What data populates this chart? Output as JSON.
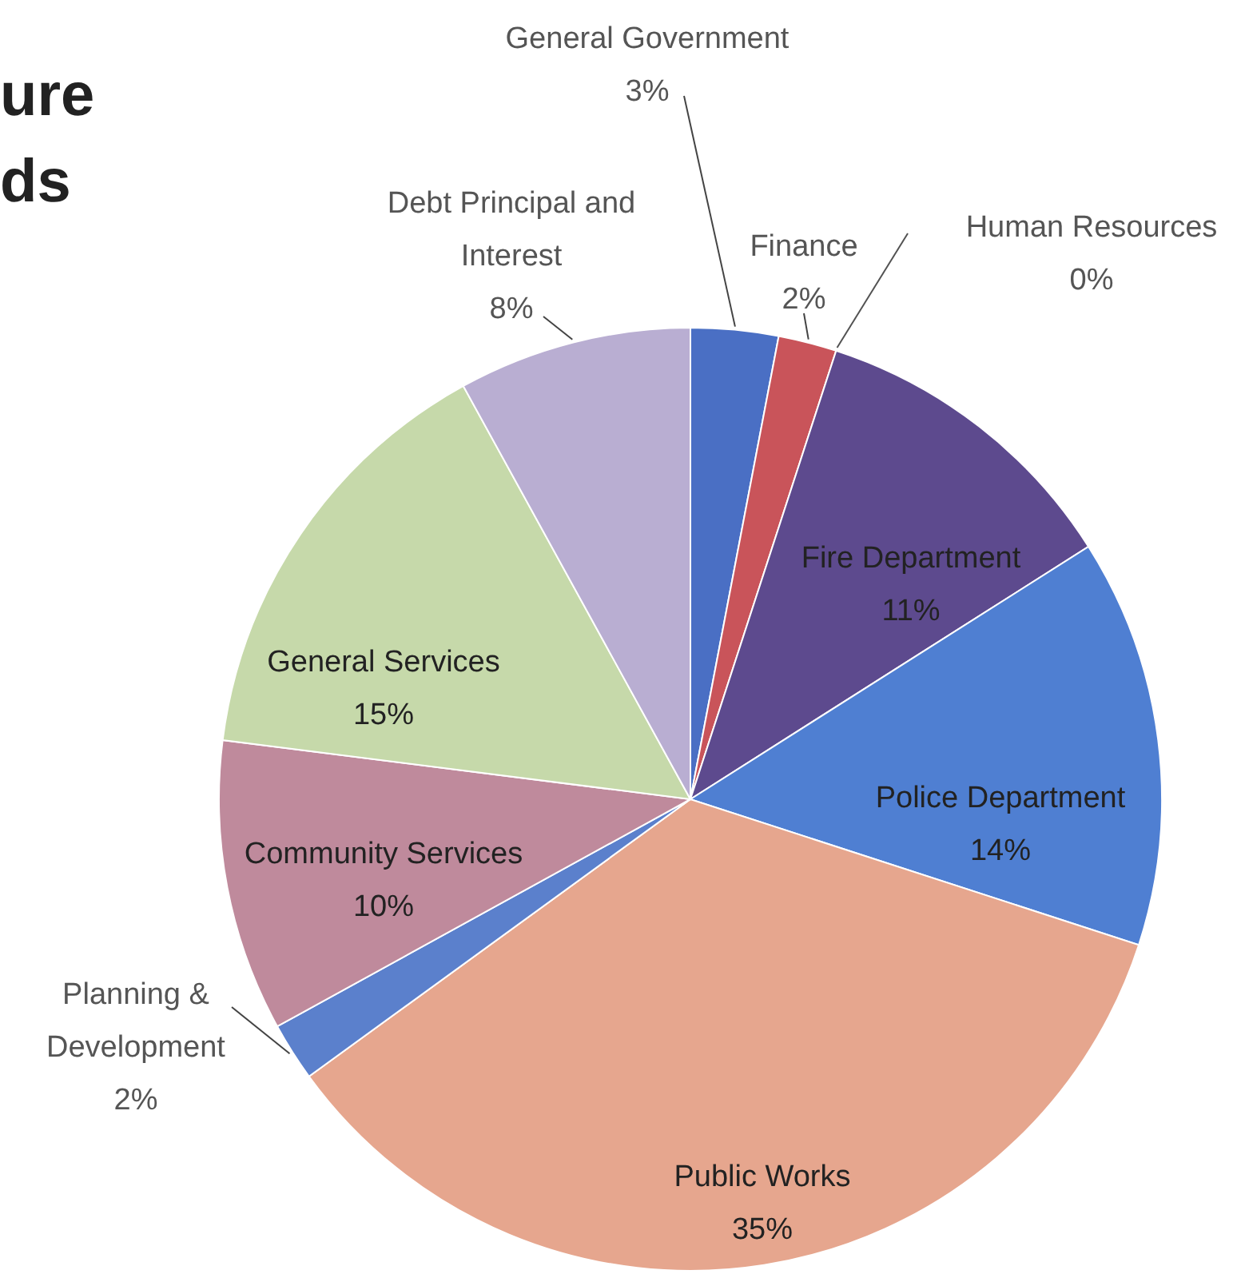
{
  "chart_data": {
    "type": "pie",
    "title": "ure",
    "subtitle": "ds",
    "categories": [
      "General Government",
      "Finance",
      "Human Resources",
      "Fire Department",
      "Police Department",
      "Public Works",
      "Planning & Development",
      "Community Services",
      "General Services",
      "Debt Principal and Interest"
    ],
    "values": [
      3,
      2,
      0,
      11,
      14,
      35,
      2,
      10,
      15,
      8
    ],
    "value_labels": [
      "3%",
      "2%",
      "0%",
      "11%",
      "14%",
      "35%",
      "2%",
      "10%",
      "15%",
      "8%"
    ],
    "colors": [
      "#4a6fc4",
      "#c9545a",
      "#c8c8c8",
      "#5d4a8e",
      "#4f7fd2",
      "#e6a68e",
      "#5b80cc",
      "#bf8a9c",
      "#c6d9aa",
      "#b9aed2"
    ]
  }
}
